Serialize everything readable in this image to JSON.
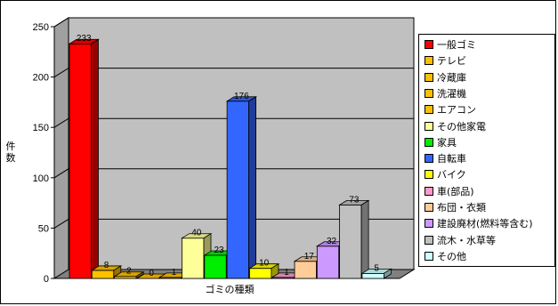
{
  "chart_data": {
    "type": "bar",
    "title": "",
    "xlabel": "ゴミの種類",
    "ylabel": "件数",
    "ylim": [
      0,
      250
    ],
    "yticks": [
      0,
      50,
      100,
      150,
      200,
      250
    ],
    "grid": true,
    "legend_position": "right",
    "plot_wall_color": "#c0c0c0",
    "series": [
      {
        "name": "一般ゴミ",
        "value": 233,
        "color": "#ff0000"
      },
      {
        "name": "テレビ",
        "value": 8,
        "color": "#ffc000"
      },
      {
        "name": "冷蔵庫",
        "value": 2,
        "color": "#ffc000"
      },
      {
        "name": "洗濯機",
        "value": 0,
        "color": "#ffc000"
      },
      {
        "name": "エアコン",
        "value": 1,
        "color": "#ffc000"
      },
      {
        "name": "その他家電",
        "value": 40,
        "color": "#ffff99"
      },
      {
        "name": "家具",
        "value": 23,
        "color": "#00ee00"
      },
      {
        "name": "自転車",
        "value": 176,
        "color": "#3366ff"
      },
      {
        "name": "バイク",
        "value": 10,
        "color": "#ffff00"
      },
      {
        "name": "車(部品)",
        "value": 1,
        "color": "#ff99cc"
      },
      {
        "name": "布団・衣類",
        "value": 17,
        "color": "#ffcc99"
      },
      {
        "name": "建設廃材(燃料等含む)",
        "value": 32,
        "color": "#cc99ff"
      },
      {
        "name": "流木・水草等",
        "value": 73,
        "color": "#c0c0c0"
      },
      {
        "name": "その他",
        "value": 5,
        "color": "#ccffff"
      }
    ]
  }
}
